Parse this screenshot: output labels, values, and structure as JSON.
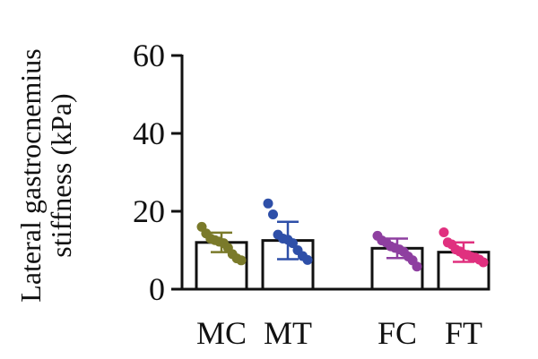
{
  "chart_data": {
    "type": "bar",
    "ylabel_lines": [
      "Lateral gastrocnemius",
      "stiffness (kPa)"
    ],
    "ylim": [
      0,
      60
    ],
    "yticks": [
      0,
      20,
      40,
      60
    ],
    "ytick_labels": [
      "0",
      "20",
      "40",
      "60"
    ],
    "grid": false,
    "categories": [
      "MC",
      "MT",
      "FC",
      "FT"
    ],
    "values": [
      12.0,
      12.5,
      10.5,
      9.5
    ],
    "error_sd": [
      2.5,
      4.8,
      2.5,
      2.5
    ],
    "colors": [
      "#7a7a2a",
      "#2e4fa8",
      "#8e3fa0",
      "#e0307f"
    ],
    "points": [
      [
        16.0,
        14.3,
        13.0,
        12.6,
        12.2,
        11.8,
        10.6,
        9.0,
        7.9,
        7.4
      ],
      [
        22.0,
        19.2,
        14.0,
        13.0,
        12.7,
        11.8,
        10.0,
        8.5,
        7.5
      ],
      [
        13.7,
        12.5,
        12.0,
        11.0,
        10.6,
        10.2,
        9.6,
        8.4,
        7.4,
        5.8
      ],
      [
        14.6,
        12.0,
        11.5,
        10.2,
        9.7,
        9.0,
        8.8,
        8.3,
        8.1,
        7.6,
        6.9
      ]
    ]
  }
}
